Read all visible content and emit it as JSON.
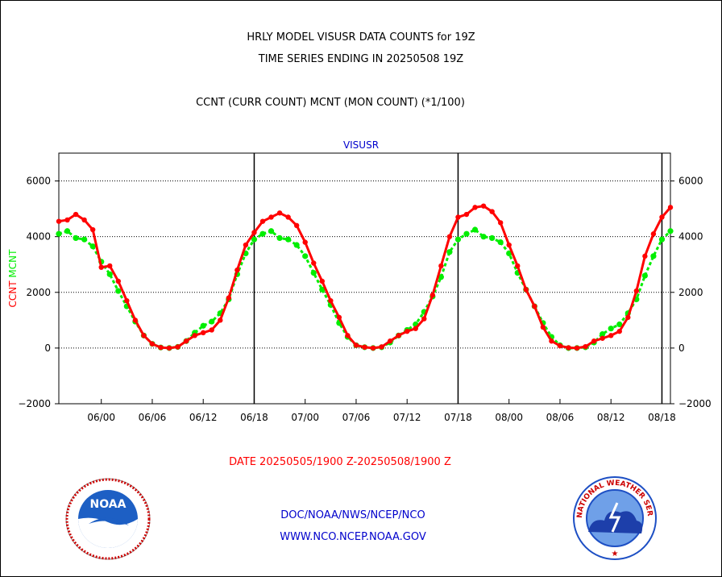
{
  "title_line1": "HRLY MODEL VISUSR DATA COUNTS for 19Z",
  "title_line2": "TIME SERIES ENDING IN 20250508 19Z",
  "subtitle": "CCNT (CURR COUNT) MCNT (MON COUNT) (*1/100)",
  "footer_date": "DATE 20250505/1900 Z-20250508/1900 Z",
  "footer_link1": "DOC/NOAA/NWS/NCEP/NCO",
  "footer_link2": "WWW.NCO.NCEP.NOAA.GOV",
  "noaa_logo_text": "NOAA",
  "nws_logo_text": "NATIONAL WEATHER SERVICE",
  "colors": {
    "ccnt": "#ff0000",
    "mcnt": "#00ee00",
    "link": "#0000cc",
    "date": "#ff0000"
  },
  "chart_data": {
    "type": "line",
    "title": "VISUSR",
    "ylabel_left_parts": [
      {
        "text": "CCNT",
        "color": "#ff0000"
      },
      {
        "text": "MCNT",
        "color": "#00ee00"
      }
    ],
    "ylim": [
      -2000,
      7000
    ],
    "yticks": [
      -2000,
      0,
      2000,
      4000,
      6000
    ],
    "ytick_labels": [
      "−2000",
      "0",
      "2000",
      "4000",
      "6000"
    ],
    "x_unit": "hours from 05/19Z",
    "xlim": [
      0,
      72
    ],
    "xticks": [
      5,
      11,
      17,
      23,
      29,
      35,
      41,
      47,
      53,
      59,
      65,
      71
    ],
    "xtick_labels": [
      "06/00",
      "06/06",
      "06/12",
      "06/18",
      "07/00",
      "07/06",
      "07/12",
      "07/18",
      "08/00",
      "08/06",
      "08/12",
      "08/18"
    ],
    "vlines": [
      23,
      47,
      71
    ],
    "grid": "horizontal dotted",
    "series": [
      {
        "name": "CCNT",
        "color": "#ff0000",
        "values": [
          4550,
          4600,
          4800,
          4600,
          4250,
          2900,
          2950,
          2400,
          1700,
          1000,
          450,
          150,
          20,
          0,
          40,
          250,
          450,
          550,
          650,
          1000,
          1800,
          2800,
          3700,
          4150,
          4550,
          4700,
          4850,
          4700,
          4400,
          3800,
          3050,
          2400,
          1700,
          1100,
          450,
          100,
          30,
          0,
          40,
          250,
          450,
          600,
          700,
          1050,
          1900,
          2950,
          4000,
          4700,
          4800,
          5050,
          5100,
          4900,
          4500,
          3700,
          2950,
          2100,
          1500,
          750,
          250,
          80,
          10,
          0,
          50,
          250,
          350,
          450,
          600,
          1100,
          2050,
          3300,
          4100,
          4700,
          5050
        ]
      },
      {
        "name": "MCNT",
        "color": "#00ee00",
        "values": [
          4100,
          4200,
          3950,
          3900,
          3650,
          3100,
          2650,
          2050,
          1500,
          950,
          450,
          150,
          20,
          0,
          40,
          250,
          550,
          800,
          950,
          1250,
          1750,
          2650,
          3400,
          3900,
          4100,
          4200,
          3950,
          3900,
          3700,
          3300,
          2700,
          2100,
          1550,
          900,
          400,
          100,
          30,
          0,
          30,
          200,
          450,
          650,
          850,
          1300,
          1850,
          2550,
          3450,
          3900,
          4100,
          4250,
          4000,
          3950,
          3800,
          3400,
          2700,
          2100,
          1500,
          900,
          400,
          100,
          0,
          0,
          30,
          200,
          500,
          700,
          850,
          1250,
          1750,
          2600,
          3300,
          3900,
          4200
        ]
      }
    ]
  }
}
